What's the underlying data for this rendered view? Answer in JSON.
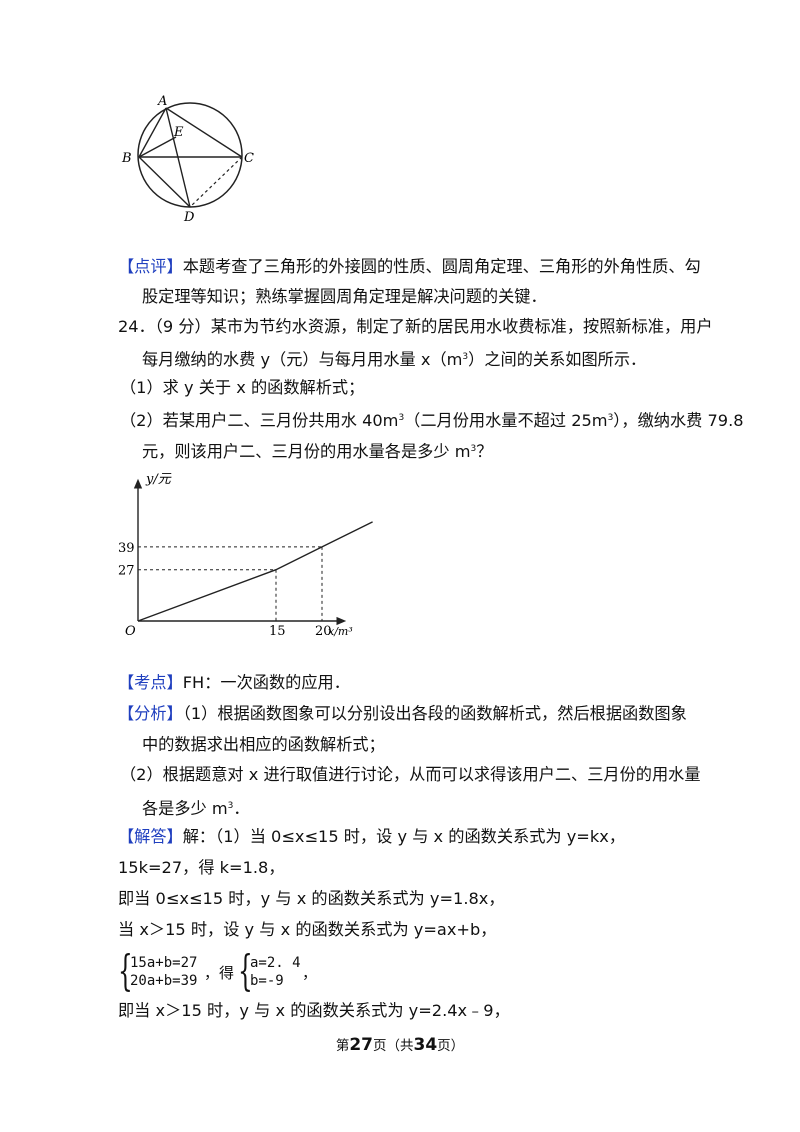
{
  "circle_figure": {
    "labels": {
      "A": "A",
      "B": "B",
      "C": "C",
      "D": "D",
      "E": "E"
    }
  },
  "commentary": {
    "tag": "【点评】",
    "line1": "本题考查了三角形的外接圆的性质、圆周角定理、三角形的外角性质、勾",
    "line2": "股定理等知识；熟练掌握圆周角定理是解决问题的关键．"
  },
  "problem": {
    "header": "24．（9 分）某市为节约水资源，制定了新的居民用水收费标准，按照新标准，用户",
    "line2_pre": "每月缴纳的水费 y（元）与每月用水量 x（m",
    "line2_sup": "3",
    "line2_post": "）之间的关系如图所示．",
    "part1": "（1）求 y 关于 x 的函数解析式；",
    "part2_a": "（2）若某用户二、三月份共用水 40m",
    "part2_sup1": "3",
    "part2_b": "（二月份用水量不超过 25m",
    "part2_sup2": "3",
    "part2_c": "），缴纳水费 79.8",
    "part2_line2_pre": "元，则该用户二、三月份的用水量各是多少 m",
    "part2_line2_sup": "3",
    "part2_line2_post": "？"
  },
  "chart_data": {
    "type": "line",
    "ylabel": "y/元",
    "xlabel": "x/m³",
    "origin_label": "O",
    "x_ticks": [
      "15",
      "20"
    ],
    "y_ticks": [
      "27",
      "39"
    ],
    "series": [
      {
        "x": [
          0,
          15,
          20,
          25.5
        ],
        "y": [
          0,
          27,
          39,
          52.2
        ]
      }
    ],
    "xlim": [
      0,
      28
    ],
    "ylim": [
      0,
      66
    ],
    "grid": false,
    "dashed_guides": [
      [
        15,
        27
      ],
      [
        20,
        39
      ]
    ]
  },
  "analysis": {
    "kaodian_tag": "【考点】",
    "kaodian_text": "FH：一次函数的应用．",
    "fenxi_tag": "【分析】",
    "fenxi_line1": "（1）根据函数图象可以分别设出各段的函数解析式，然后根据函数图象",
    "fenxi_line2": "中的数据求出相应的函数解析式；",
    "fenxi_line3": "（2）根据题意对 x 进行取值进行讨论，从而可以求得该用户二、三月份的用水量",
    "fenxi_line4_pre": "各是多少 m",
    "fenxi_line4_sup": "3",
    "fenxi_line4_post": "．"
  },
  "solution": {
    "tag": "【解答】",
    "line1": "解：（1）当 0≤x≤15 时，设 y 与 x 的函数关系式为 y=kx，",
    "line2": "15k=27，得 k=1.8，",
    "line3": "即当 0≤x≤15 时，y 与 x 的函数关系式为 y=1.8x，",
    "line4": "当 x＞15 时，设 y 与 x 的函数关系式为 y=ax+b，",
    "sys1_eq1": "15a+b=27",
    "sys1_eq2": "20a+b=39",
    "sys_mid": "，得",
    "sys2_eq1": "a=2. 4",
    "sys2_eq2": "b=-9",
    "sys_end": "，",
    "line5": "即当 x＞15 时，y 与 x 的函数关系式为 y=2.4x﹣9，"
  },
  "footer": {
    "pre": "第",
    "page": "27",
    "mid": "页（共",
    "total": "34",
    "post": "页）"
  }
}
